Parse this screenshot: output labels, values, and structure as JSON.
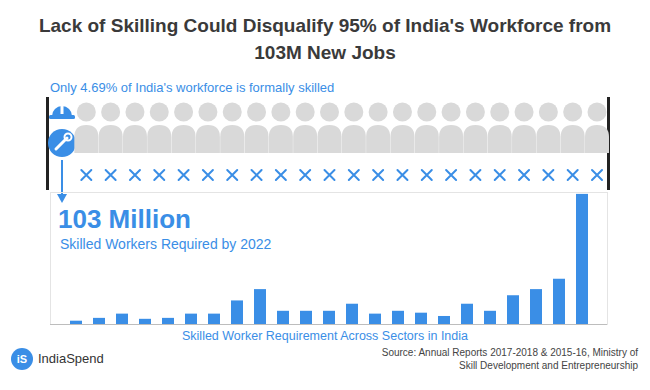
{
  "chart_data": {
    "type": "bar",
    "title": "Lack of Skilling Could Disqualify 95% of India's Workforce from 103M New Jobs",
    "subtitle": "Only 4.69% of India's workforce is formally skilled",
    "pictogram": {
      "figures": 23,
      "skilled": 1
    },
    "annotations": [
      "103 Million",
      "Skilled Workers Required by 2022"
    ],
    "x_label": "Skilled Worker Requirement Across Sectors in India",
    "categories": [
      null,
      null,
      null,
      null,
      null,
      null,
      null,
      null,
      null,
      null,
      null,
      null,
      null,
      null,
      null,
      null,
      null,
      null,
      null,
      null,
      null,
      null,
      null
    ],
    "values": [
      0.7,
      1.3,
      2.2,
      1.1,
      1.3,
      2.2,
      2.2,
      5.0,
      7.4,
      2.8,
      2.8,
      2.8,
      4.3,
      2.2,
      2.8,
      2.4,
      1.7,
      4.3,
      2.8,
      6.1,
      7.4,
      9.6,
      27.6
    ],
    "color": "#3a8ee6",
    "ylim": [
      0,
      28
    ],
    "yticks": [],
    "tick_labels": false,
    "source": "Source: Annual Reports 2017-2018 & 2015-16, Ministry of Skill Development and Entrepreneurship",
    "logo": {
      "mark": "iS",
      "name": "IndiaSpend"
    }
  }
}
